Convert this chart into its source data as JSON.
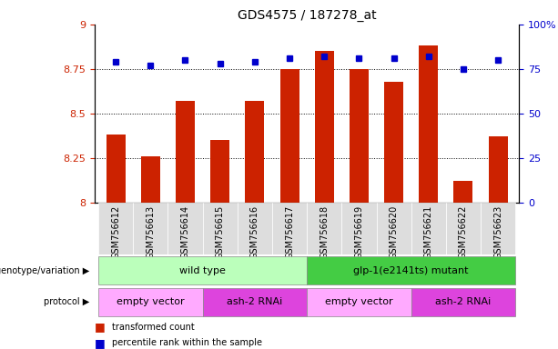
{
  "title": "GDS4575 / 187278_at",
  "samples": [
    "GSM756612",
    "GSM756613",
    "GSM756614",
    "GSM756615",
    "GSM756616",
    "GSM756617",
    "GSM756618",
    "GSM756619",
    "GSM756620",
    "GSM756621",
    "GSM756622",
    "GSM756623"
  ],
  "bar_values": [
    8.38,
    8.26,
    8.57,
    8.35,
    8.57,
    8.75,
    8.85,
    8.75,
    8.68,
    8.88,
    8.12,
    8.37
  ],
  "dot_values": [
    79,
    77,
    80,
    78,
    79,
    81,
    82,
    81,
    81,
    82,
    75,
    80
  ],
  "bar_color": "#cc2200",
  "dot_color": "#0000cc",
  "ylim_left": [
    8.0,
    9.0
  ],
  "ylim_right": [
    0,
    100
  ],
  "yticks_left": [
    8.0,
    8.25,
    8.5,
    8.75,
    9.0
  ],
  "yticks_right": [
    0,
    25,
    50,
    75,
    100
  ],
  "ytick_labels_left": [
    "8",
    "8.25",
    "8.5",
    "8.75",
    "9"
  ],
  "ytick_labels_right": [
    "0",
    "25",
    "50",
    "75",
    "100%"
  ],
  "grid_values": [
    8.25,
    8.5,
    8.75
  ],
  "genotype_groups": [
    {
      "label": "wild type",
      "start": 0,
      "end": 5,
      "color": "#bbffbb"
    },
    {
      "label": "glp-1(e2141ts) mutant",
      "start": 6,
      "end": 11,
      "color": "#44cc44"
    }
  ],
  "protocol_groups": [
    {
      "label": "empty vector",
      "start": 0,
      "end": 2,
      "color": "#ffaaff"
    },
    {
      "label": "ash-2 RNAi",
      "start": 3,
      "end": 5,
      "color": "#dd44dd"
    },
    {
      "label": "empty vector",
      "start": 6,
      "end": 8,
      "color": "#ffaaff"
    },
    {
      "label": "ash-2 RNAi",
      "start": 9,
      "end": 11,
      "color": "#dd44dd"
    }
  ],
  "legend_items": [
    {
      "color": "#cc2200",
      "label": "transformed count"
    },
    {
      "color": "#0000cc",
      "label": "percentile rank within the sample"
    }
  ],
  "bar_width": 0.55,
  "left_tick_color": "#cc2200",
  "right_tick_color": "#0000cc",
  "xtick_bg": "#dddddd",
  "n_samples": 12
}
